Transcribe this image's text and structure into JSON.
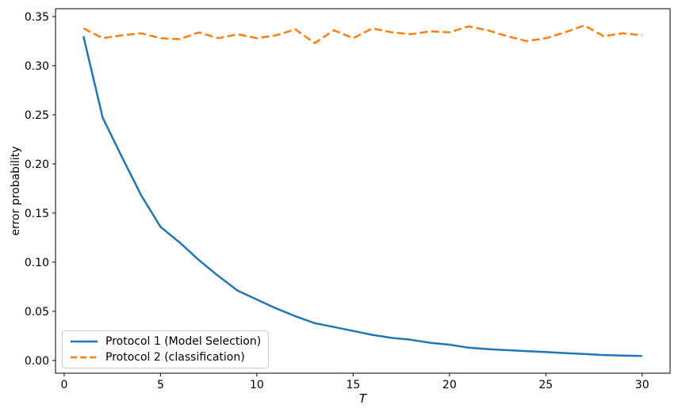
{
  "chart_data": {
    "type": "line",
    "title": "",
    "xlabel": "T",
    "ylabel": "error probability",
    "x": [
      1,
      2,
      3,
      4,
      5,
      6,
      7,
      8,
      9,
      10,
      11,
      12,
      13,
      14,
      15,
      16,
      17,
      18,
      19,
      20,
      21,
      22,
      23,
      24,
      25,
      26,
      27,
      28,
      29,
      30
    ],
    "series": [
      {
        "name": "Protocol 1 (Model Selection)",
        "color": "#1f77b4",
        "style": "solid",
        "values": [
          0.33,
          0.247,
          0.207,
          0.168,
          0.136,
          0.12,
          0.102,
          0.086,
          0.071,
          0.062,
          0.053,
          0.045,
          0.038,
          0.034,
          0.03,
          0.026,
          0.023,
          0.021,
          0.018,
          0.016,
          0.013,
          0.0115,
          0.0105,
          0.0095,
          0.0085,
          0.0075,
          0.0065,
          0.0055,
          0.005,
          0.0045
        ]
      },
      {
        "name": "Protocol 2 (classification)",
        "color": "#ff7f0e",
        "style": "dashed",
        "values": [
          0.338,
          0.328,
          0.331,
          0.333,
          0.328,
          0.327,
          0.334,
          0.328,
          0.332,
          0.328,
          0.331,
          0.337,
          0.323,
          0.336,
          0.328,
          0.338,
          0.334,
          0.332,
          0.335,
          0.334,
          0.34,
          0.336,
          0.33,
          0.325,
          0.328,
          0.334,
          0.341,
          0.33,
          0.333,
          0.331
        ]
      }
    ],
    "xticks": [
      0,
      5,
      10,
      15,
      20,
      25,
      30
    ],
    "yticks": [
      "0.00",
      "0.05",
      "0.10",
      "0.15",
      "0.20",
      "0.25",
      "0.30",
      "0.35"
    ],
    "xlim": [
      -0.45,
      31.45
    ],
    "ylim": [
      -0.013,
      0.358
    ],
    "grid": false,
    "legend_position": "lower left"
  }
}
